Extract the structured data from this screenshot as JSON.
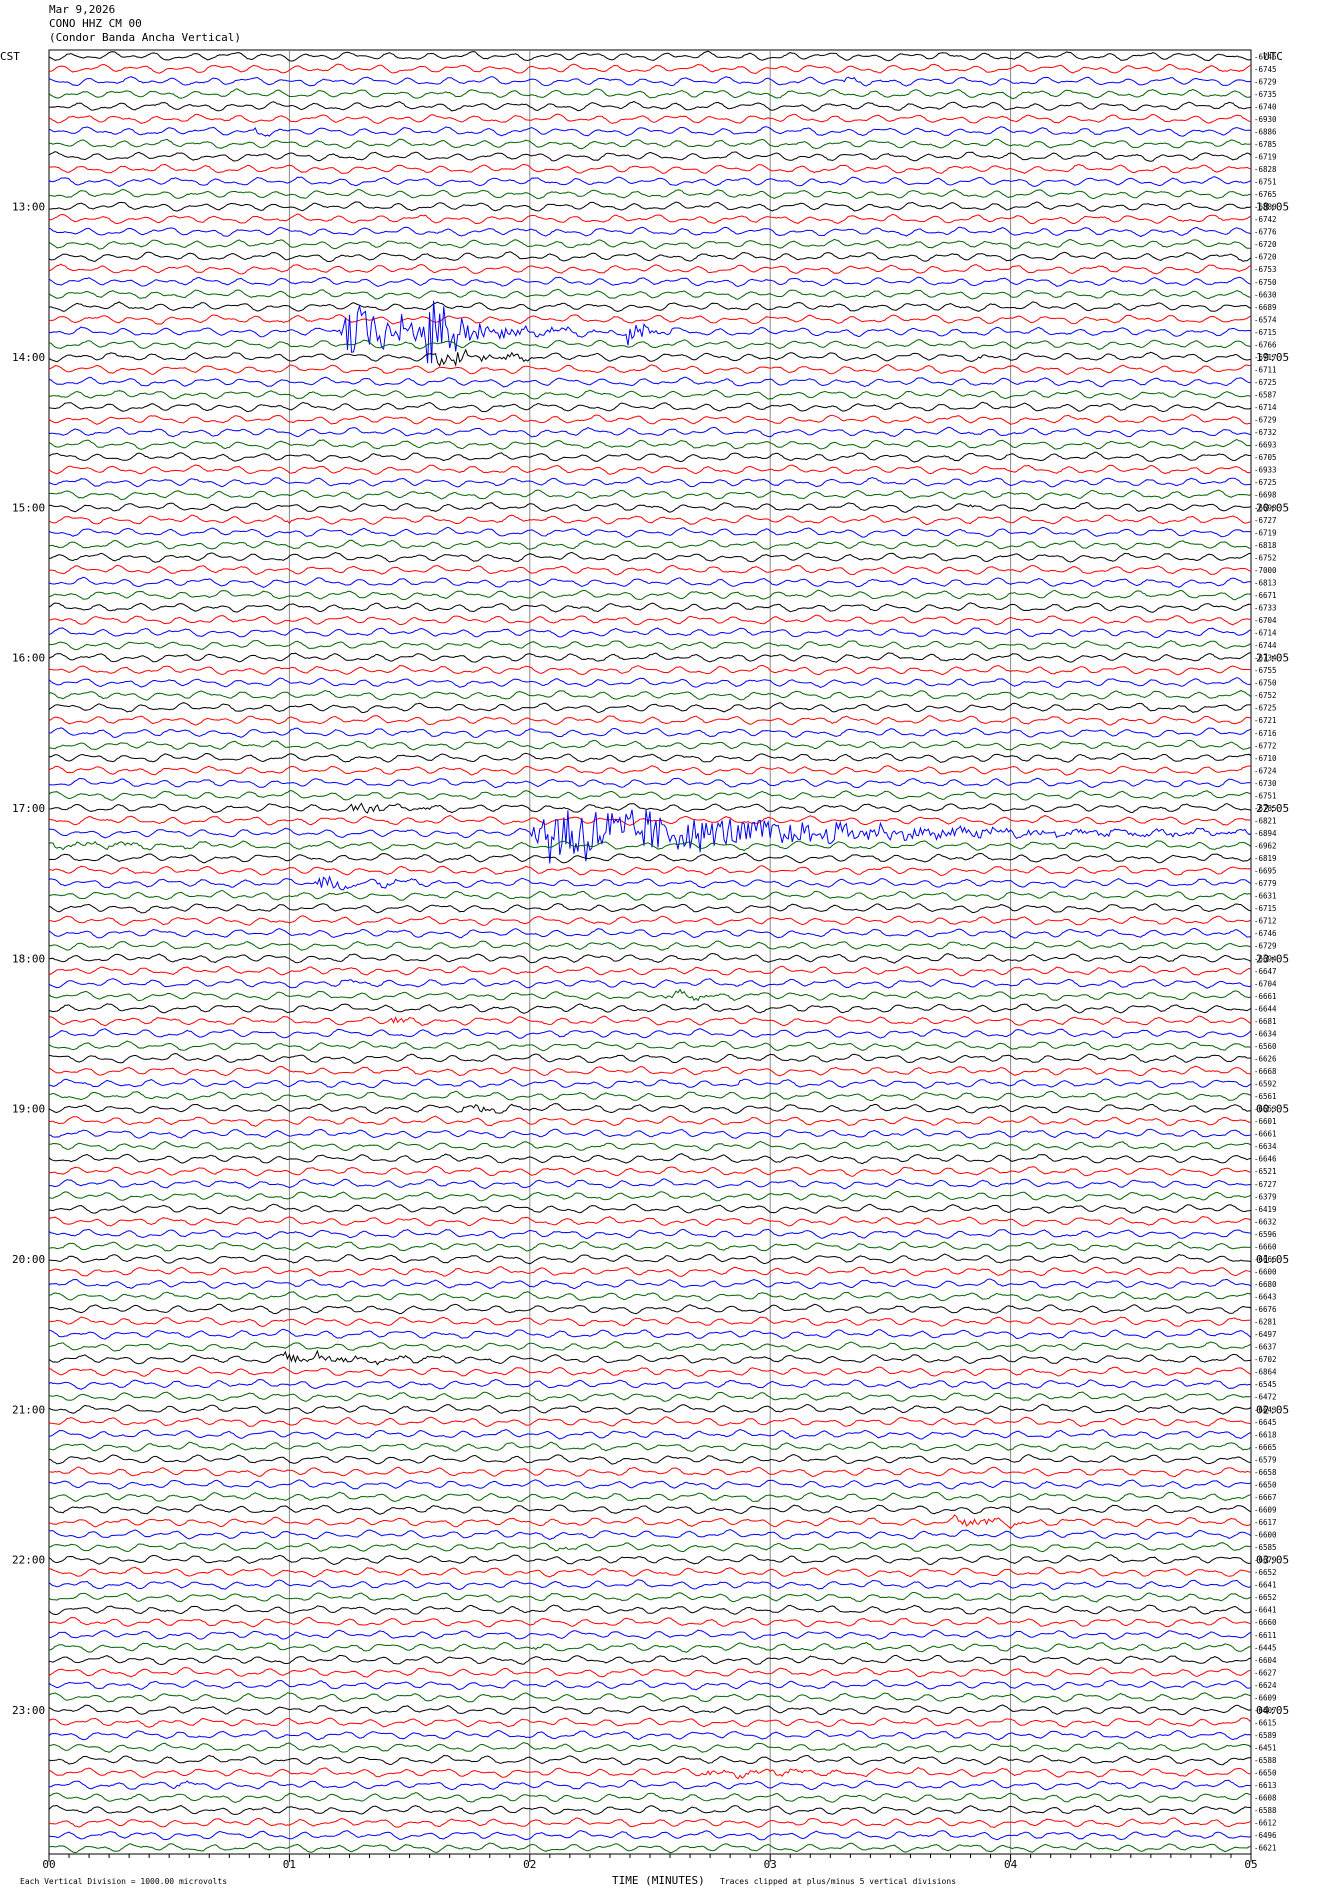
{
  "header": {
    "date": "Mar 9,2026",
    "station": "CONO HHZ CM 00",
    "description": "(Condor Banda Ancha Vertical)"
  },
  "left_tz": "CST",
  "right_tz": "UTC",
  "footer": {
    "scale_note": "Each Vertical Division = 1000.00 microvolts",
    "xlabel": "TIME (MINUTES)",
    "clip_note": "Traces clipped at plus/minus 5 vertical divisions"
  },
  "trace_colors": [
    "#000000",
    "#ff0000",
    "#0000ff",
    "#006400"
  ],
  "chart_data": {
    "type": "line",
    "title": "CONO HHZ CM 00",
    "xlabel": "TIME (MINUTES)",
    "xlim": [
      0,
      5
    ],
    "x_ticks": [
      "00",
      "01",
      "02",
      "03",
      "04",
      "05"
    ],
    "rows": 144,
    "left_hour_labels": [
      "13:00",
      "14:00",
      "15:00",
      "16:00",
      "17:00",
      "18:00",
      "19:00",
      "20:00",
      "21:00",
      "22:00",
      "23:00"
    ],
    "right_hour_labels": [
      "18:05",
      "19:05",
      "20:05",
      "21:05",
      "22:05",
      "23:05",
      "00:05",
      "01:05",
      "02:05",
      "03:05",
      "04:05"
    ],
    "first_hour_row": 12,
    "right_values": [
      "-6746",
      "-6745",
      "-6729",
      "-6735",
      "-6740",
      "-6930",
      "-6886",
      "-6785",
      "-6719",
      "-6828",
      "-6751",
      "-6765",
      "-6880",
      "-6742",
      "-6776",
      "-6720",
      "-6720",
      "-6753",
      "-6750",
      "-6630",
      "-6689",
      "-6574",
      "-6715",
      "-6766",
      "-6717",
      "-6711",
      "-6725",
      "-6587",
      "-6714",
      "-6729",
      "-6732",
      "-6693",
      "-6705",
      "-6933",
      "-6725",
      "-6698",
      "-6698",
      "-6727",
      "-6719",
      "-6818",
      "-6752",
      "-7000",
      "-6813",
      "-6671",
      "-6733",
      "-6704",
      "-6714",
      "-6744",
      "-6734",
      "-6755",
      "-6750",
      "-6752",
      "-6725",
      "-6721",
      "-6716",
      "-6772",
      "-6710",
      "-6724",
      "-6730",
      "-6751",
      "-6785",
      "-6821",
      "-6894",
      "-6962",
      "-6819",
      "-6695",
      "-6779",
      "-6631",
      "-6715",
      "-6712",
      "-6746",
      "-6729",
      "-6694",
      "-6647",
      "-6704",
      "-6661",
      "-6644",
      "-6681",
      "-6634",
      "-6560",
      "-6626",
      "-6668",
      "-6592",
      "-6561",
      "-6553",
      "-6601",
      "-6661",
      "-6634",
      "-6646",
      "-6521",
      "-6727",
      "-6379",
      "-6419",
      "-6632",
      "-6596",
      "-6660",
      "-6666",
      "-6600",
      "-6680",
      "-6643",
      "-6676",
      "-6281",
      "-6497",
      "-6637",
      "-6702",
      "-6864",
      "-6545",
      "-6472",
      "-6643",
      "-6645",
      "-6618",
      "-6665",
      "-6579",
      "-6658",
      "-6650",
      "-6667",
      "-6609",
      "-6617",
      "-6600",
      "-6585",
      "-6679",
      "-6652",
      "-6641",
      "-6652",
      "-6641",
      "-6660",
      "-6611",
      "-6445",
      "-6604",
      "-6627",
      "-6624",
      "-6609",
      "-6607",
      "-6615",
      "-6589",
      "-6451",
      "-6588",
      "-6650",
      "-6613",
      "-6608",
      "-6588",
      "-6612",
      "-6496",
      "-6621"
    ],
    "events": [
      {
        "row": 6,
        "t": 0.85,
        "dur": 0.25,
        "amp": 0.5
      },
      {
        "row": 2,
        "t": 3.3,
        "dur": 0.25,
        "amp": 0.5
      },
      {
        "row": 13,
        "t": 1.55,
        "dur": 0.1,
        "amp": 0.4
      },
      {
        "row": 22,
        "t": 1.2,
        "dur": 1.2,
        "amp": 5.0
      },
      {
        "row": 22,
        "t": 1.57,
        "dur": 0.3,
        "amp": 9.0
      },
      {
        "row": 22,
        "t": 2.4,
        "dur": 0.25,
        "amp": 3.0
      },
      {
        "row": 24,
        "t": 1.6,
        "dur": 0.6,
        "amp": 2.0
      },
      {
        "row": 24,
        "t": 3.85,
        "dur": 0.15,
        "amp": 0.6
      },
      {
        "row": 36,
        "t": 2.93,
        "dur": 0.1,
        "amp": 0.4
      },
      {
        "row": 36,
        "t": 3.82,
        "dur": 0.12,
        "amp": 0.4
      },
      {
        "row": 37,
        "t": 0.95,
        "dur": 0.25,
        "amp": 0.4
      },
      {
        "row": 48,
        "t": 2.5,
        "dur": 0.12,
        "amp": 0.3
      },
      {
        "row": 52,
        "t": 4.6,
        "dur": 0.3,
        "amp": 0.3
      },
      {
        "row": 60,
        "t": 1.25,
        "dur": 0.5,
        "amp": 1.2
      },
      {
        "row": 62,
        "t": 2.0,
        "dur": 3.0,
        "amp": 6.0
      },
      {
        "row": 63,
        "t": 0.0,
        "dur": 1.2,
        "amp": 0.5
      },
      {
        "row": 66,
        "t": 1.1,
        "dur": 0.7,
        "amp": 1.4
      },
      {
        "row": 74,
        "t": 1.2,
        "dur": 0.3,
        "amp": 0.4
      },
      {
        "row": 75,
        "t": 2.55,
        "dur": 0.6,
        "amp": 0.6
      },
      {
        "row": 77,
        "t": 1.42,
        "dur": 0.2,
        "amp": 1.0
      },
      {
        "row": 82,
        "t": 2.85,
        "dur": 0.15,
        "amp": 0.4
      },
      {
        "row": 84,
        "t": 1.7,
        "dur": 0.8,
        "amp": 0.6
      },
      {
        "row": 104,
        "t": 0.95,
        "dur": 0.9,
        "amp": 1.4
      },
      {
        "row": 117,
        "t": 3.75,
        "dur": 0.9,
        "amp": 0.8
      },
      {
        "row": 119,
        "t": 2.1,
        "dur": 0.2,
        "amp": 0.4
      },
      {
        "row": 127,
        "t": 2.0,
        "dur": 0.2,
        "amp": 0.3
      },
      {
        "row": 137,
        "t": 2.7,
        "dur": 1.5,
        "amp": 0.5
      },
      {
        "row": 138,
        "t": 0.5,
        "dur": 0.3,
        "amp": 0.4
      }
    ]
  }
}
